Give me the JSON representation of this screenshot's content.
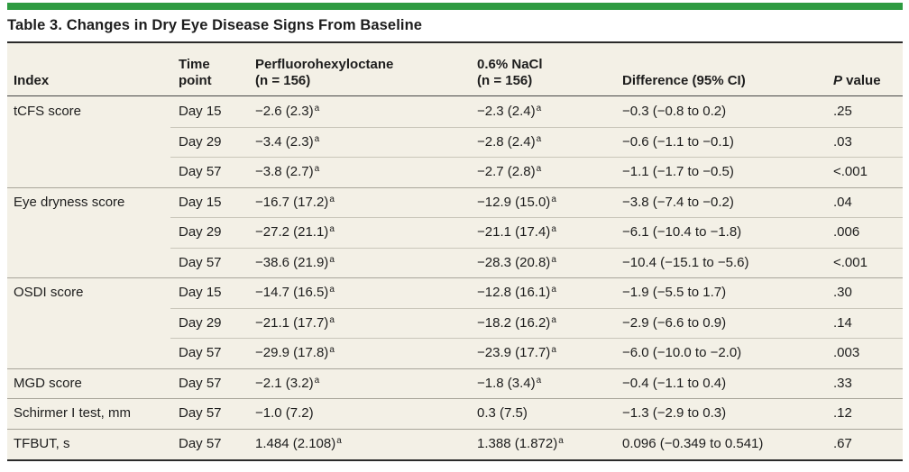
{
  "title": "Table 3. Changes in Dry Eye Disease Signs From Baseline",
  "colors": {
    "accent": "#2e9b41",
    "table_background": "#f3f0e6",
    "text": "#1d1d1d",
    "rule_dark": "#2a2a2a",
    "rule_header": "#454545",
    "divider_group": "#a8a59a",
    "divider_sub": "#c9c6ba"
  },
  "table": {
    "columns": [
      "Index",
      "Time\npoint",
      "Perfluorohexyloctane\n(n = 156)",
      "0.6% NaCl\n(n = 156)",
      "Difference (95% CI)",
      "P value"
    ],
    "footnote_marker": "a",
    "rows": [
      {
        "index": "tCFS score",
        "time": "Day 15",
        "drug": "−2.6 (2.3)",
        "drug_sup": "a",
        "control": "−2.3 (2.4)",
        "control_sup": "a",
        "difference": "−0.3 (−0.8 to 0.2)",
        "p": ".25",
        "group_start": true
      },
      {
        "index": "",
        "time": "Day 29",
        "drug": "−3.4 (2.3)",
        "drug_sup": "a",
        "control": "−2.8 (2.4)",
        "control_sup": "a",
        "difference": "−0.6 (−1.1 to −0.1)",
        "p": ".03",
        "group_start": false
      },
      {
        "index": "",
        "time": "Day 57",
        "drug": "−3.8 (2.7)",
        "drug_sup": "a",
        "control": "−2.7 (2.8)",
        "control_sup": "a",
        "difference": "−1.1 (−1.7 to −0.5)",
        "p": "<.001",
        "group_start": false
      },
      {
        "index": "Eye dryness score",
        "time": "Day 15",
        "drug": "−16.7 (17.2)",
        "drug_sup": "a",
        "control": "−12.9 (15.0)",
        "control_sup": "a",
        "difference": "−3.8 (−7.4 to −0.2)",
        "p": ".04",
        "group_start": true
      },
      {
        "index": "",
        "time": "Day 29",
        "drug": "−27.2 (21.1)",
        "drug_sup": "a",
        "control": "−21.1 (17.4)",
        "control_sup": "a",
        "difference": "−6.1 (−10.4 to −1.8)",
        "p": ".006",
        "group_start": false
      },
      {
        "index": "",
        "time": "Day 57",
        "drug": "−38.6 (21.9)",
        "drug_sup": "a",
        "control": "−28.3 (20.8)",
        "control_sup": "a",
        "difference": "−10.4 (−15.1 to −5.6)",
        "p": "<.001",
        "group_start": false
      },
      {
        "index": "OSDI score",
        "time": "Day 15",
        "drug": "−14.7 (16.5)",
        "drug_sup": "a",
        "control": "−12.8 (16.1)",
        "control_sup": "a",
        "difference": "−1.9 (−5.5 to 1.7)",
        "p": ".30",
        "group_start": true
      },
      {
        "index": "",
        "time": "Day 29",
        "drug": "−21.1 (17.7)",
        "drug_sup": "a",
        "control": "−18.2 (16.2)",
        "control_sup": "a",
        "difference": "−2.9 (−6.6 to 0.9)",
        "p": ".14",
        "group_start": false
      },
      {
        "index": "",
        "time": "Day 57",
        "drug": "−29.9 (17.8)",
        "drug_sup": "a",
        "control": "−23.9 (17.7)",
        "control_sup": "a",
        "difference": "−6.0 (−10.0 to −2.0)",
        "p": ".003",
        "group_start": false
      },
      {
        "index": "MGD score",
        "time": "Day 57",
        "drug": "−2.1 (3.2)",
        "drug_sup": "a",
        "control": "−1.8 (3.4)",
        "control_sup": "a",
        "difference": "−0.4 (−1.1 to 0.4)",
        "p": ".33",
        "group_start": true
      },
      {
        "index": "Schirmer I test, mm",
        "time": "Day 57",
        "drug": "−1.0 (7.2)",
        "control": "0.3 (7.5)",
        "difference": "−1.3 (−2.9 to 0.3)",
        "p": ".12",
        "group_start": true
      },
      {
        "index": "TFBUT, s",
        "time": "Day 57",
        "drug": "1.484 (2.108)",
        "drug_sup": "a",
        "control": "1.388 (1.872)",
        "control_sup": "a",
        "difference": "0.096 (−0.349 to 0.541)",
        "p": ".67",
        "group_start": true
      }
    ]
  }
}
